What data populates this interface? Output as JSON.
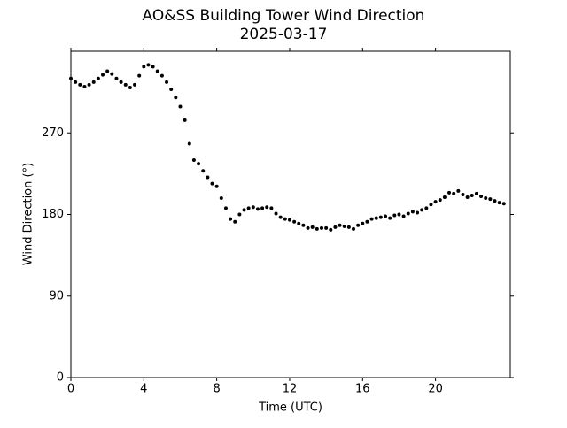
{
  "chart_data": {
    "type": "scatter",
    "title": "AO&SS Building Tower Wind Direction",
    "subtitle": "2025-03-17",
    "x_label": "Time (UTC)",
    "y_label": "Wind Direction (°)",
    "color": "#000000",
    "xlim": [
      0,
      24.1
    ],
    "ylim": [
      0,
      360
    ],
    "xticks": [
      0,
      4,
      8,
      12,
      16,
      20
    ],
    "yticks": [
      0,
      90,
      180,
      270
    ],
    "x": [
      0,
      0.25,
      0.5,
      0.75,
      1,
      1.25,
      1.5,
      1.75,
      2,
      2.25,
      2.5,
      2.75,
      3,
      3.25,
      3.5,
      3.75,
      4,
      4.25,
      4.5,
      4.75,
      5,
      5.25,
      5.5,
      5.75,
      6,
      6.25,
      6.5,
      6.75,
      7,
      7.25,
      7.5,
      7.75,
      8,
      8.25,
      8.5,
      8.75,
      9,
      9.25,
      9.5,
      9.75,
      10,
      10.25,
      10.5,
      10.75,
      11,
      11.25,
      11.5,
      11.75,
      12,
      12.25,
      12.5,
      12.75,
      13,
      13.25,
      13.5,
      13.75,
      14,
      14.25,
      14.5,
      14.75,
      15,
      15.25,
      15.5,
      15.75,
      16,
      16.25,
      16.5,
      16.75,
      17,
      17.25,
      17.5,
      17.75,
      18,
      18.25,
      18.5,
      18.75,
      19,
      19.25,
      19.5,
      19.75,
      20,
      20.25,
      20.5,
      20.75,
      21,
      21.25,
      21.5,
      21.75,
      22,
      22.25,
      22.5,
      22.75,
      23,
      23.25,
      23.5,
      23.75
    ],
    "values": [
      330,
      326,
      323,
      321,
      323,
      326,
      330,
      334,
      338,
      335,
      330,
      326,
      323,
      320,
      323,
      333,
      343,
      345,
      343,
      338,
      333,
      326,
      318,
      309,
      299,
      284,
      258,
      240,
      236,
      228,
      221,
      214,
      211,
      198,
      187,
      175,
      172,
      180,
      185,
      187,
      188,
      186,
      187,
      188,
      187,
      181,
      177,
      175,
      174,
      172,
      170,
      168,
      165,
      166,
      164,
      165,
      165,
      163,
      166,
      168,
      167,
      166,
      164,
      168,
      170,
      172,
      175,
      176,
      177,
      178,
      176,
      179,
      180,
      178,
      181,
      183,
      182,
      185,
      187,
      191,
      194,
      196,
      199,
      204,
      203,
      206,
      202,
      199,
      201,
      203,
      200,
      198,
      197,
      195,
      193,
      192
    ]
  }
}
